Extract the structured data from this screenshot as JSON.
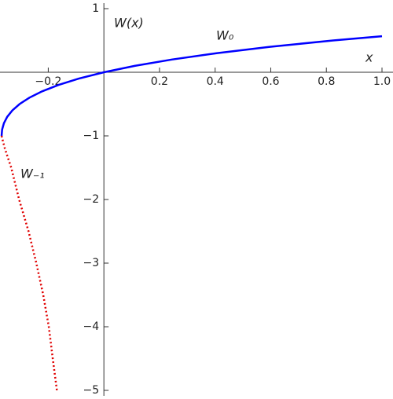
{
  "chart_data": {
    "type": "line",
    "y_axis_label": "W(x)",
    "x_axis_label": "x",
    "xlim": [
      -0.3679,
      1
    ],
    "ylim": [
      -5,
      1
    ],
    "xticks": [
      {
        "value": -0.2,
        "label": "−0.2"
      },
      0.2,
      0.4,
      0.6,
      0.8,
      {
        "value": 1,
        "label": "1.0"
      }
    ],
    "yticks": [
      1,
      {
        "value": -1,
        "label": "−1"
      },
      {
        "value": -2,
        "label": "−2"
      },
      {
        "value": -3,
        "label": "−3"
      },
      {
        "value": -4,
        "label": "−4"
      },
      {
        "value": -5,
        "label": "−5"
      }
    ],
    "series": [
      {
        "name": "W₀",
        "color": "#0000ff",
        "style": "solid",
        "x": [
          -0.3679,
          -0.3659,
          -0.3595,
          -0.3476,
          -0.3293,
          -0.3033,
          -0.2681,
          -0.2222,
          -0.1637,
          -0.0905,
          0,
          0.1105,
          0.2443,
          0.405,
          0.5967,
          0.8244,
          1
        ],
        "values": [
          -1,
          -0.9,
          -0.8,
          -0.7,
          -0.6,
          -0.5,
          -0.4,
          -0.3,
          -0.2,
          -0.1,
          0,
          0.1,
          0.2,
          0.3,
          0.4,
          0.5,
          0.5671
        ]
      },
      {
        "name": "W₋₁",
        "color": "#e00000",
        "style": "dotted",
        "x": [
          -0.3679,
          -0.356,
          -0.333,
          -0.305,
          -0.271,
          -0.243,
          -0.218,
          -0.198,
          -0.184,
          -0.169
        ],
        "values": [
          -1,
          -1.2,
          -1.5,
          -2,
          -2.5,
          -3,
          -3.5,
          -4,
          -4.5,
          -5
        ]
      }
    ]
  }
}
